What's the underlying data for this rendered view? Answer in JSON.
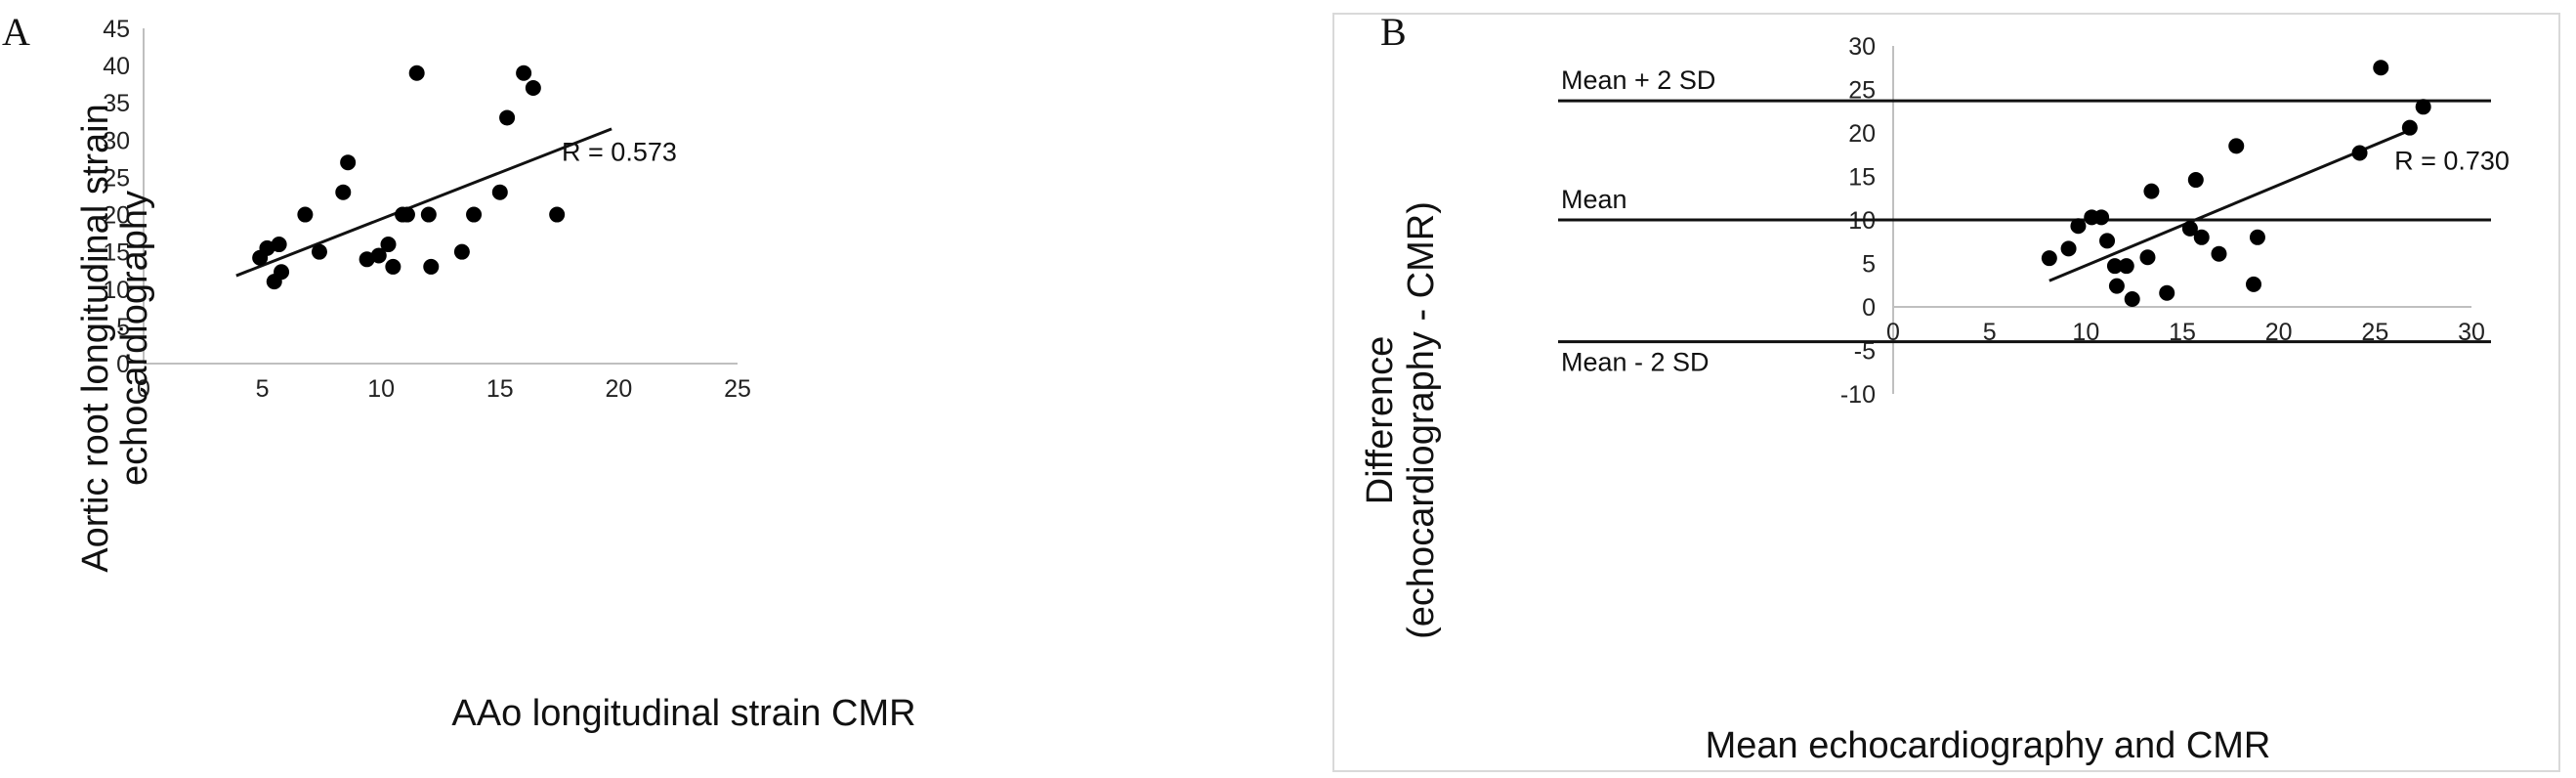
{
  "chart_data": [
    {
      "panel": "A",
      "type": "scatter",
      "xlabel": "AAo longitudinal strain CMR",
      "ylabel_lines": [
        "Aortic root longitudinal strain",
        "echocardiography"
      ],
      "xlim": [
        0,
        25
      ],
      "ylim": [
        0,
        45
      ],
      "xticks": [
        0,
        5,
        10,
        15,
        20,
        25
      ],
      "yticks": [
        0,
        5,
        10,
        15,
        20,
        25,
        30,
        35,
        40,
        45
      ],
      "points": [
        [
          4.9,
          14.2
        ],
        [
          5.2,
          15.5
        ],
        [
          5.5,
          11.0
        ],
        [
          5.7,
          16.0
        ],
        [
          5.8,
          12.3
        ],
        [
          6.8,
          20.0
        ],
        [
          7.4,
          15.0
        ],
        [
          8.4,
          23.0
        ],
        [
          8.6,
          27.0
        ],
        [
          9.4,
          14.0
        ],
        [
          9.9,
          14.5
        ],
        [
          10.3,
          16.0
        ],
        [
          10.5,
          13.0
        ],
        [
          10.9,
          20.0
        ],
        [
          11.1,
          20.0
        ],
        [
          11.5,
          39.0
        ],
        [
          12.0,
          20.0
        ],
        [
          12.1,
          13.0
        ],
        [
          13.4,
          15.0
        ],
        [
          13.9,
          20.0
        ],
        [
          15.0,
          23.0
        ],
        [
          15.3,
          33.0
        ],
        [
          16.0,
          39.0
        ],
        [
          16.4,
          37.0
        ],
        [
          17.4,
          20.0
        ]
      ],
      "trendline": [
        [
          3.9,
          11.8
        ],
        [
          19.7,
          31.5
        ]
      ],
      "annotations": [
        {
          "text": "R = 0.573",
          "x": 17.6,
          "y": 27.2
        }
      ]
    },
    {
      "panel": "B",
      "type": "scatter",
      "xlabel": "Mean echocardiography and CMR",
      "ylabel_lines": [
        "Difference",
        "(echocardiography - CMR)"
      ],
      "xlim": [
        0,
        30
      ],
      "ylim": [
        -10,
        30
      ],
      "xticks": [
        0,
        5,
        10,
        15,
        20,
        25,
        30
      ],
      "yticks": [
        -10,
        -5,
        0,
        5,
        10,
        15,
        20,
        25,
        30
      ],
      "points": [
        [
          8.1,
          5.6
        ],
        [
          9.1,
          6.7
        ],
        [
          9.6,
          9.3
        ],
        [
          10.3,
          10.3
        ],
        [
          10.8,
          10.3
        ],
        [
          11.1,
          7.6
        ],
        [
          11.5,
          4.7
        ],
        [
          11.6,
          2.4
        ],
        [
          12.1,
          4.7
        ],
        [
          12.4,
          0.9
        ],
        [
          13.2,
          5.7
        ],
        [
          13.4,
          13.3
        ],
        [
          14.2,
          1.6
        ],
        [
          15.4,
          9.0
        ],
        [
          15.7,
          14.6
        ],
        [
          16.0,
          8.0
        ],
        [
          16.9,
          6.1
        ],
        [
          17.8,
          18.5
        ],
        [
          18.7,
          2.6
        ],
        [
          18.9,
          8.0
        ],
        [
          24.2,
          17.7
        ],
        [
          25.3,
          27.5
        ],
        [
          26.8,
          20.6
        ],
        [
          27.5,
          23.0
        ]
      ],
      "trendline": [
        [
          8.1,
          3.0
        ],
        [
          26.9,
          20.4
        ]
      ],
      "reference_lines": [
        {
          "label": "Mean + 2 SD",
          "y": 23.7
        },
        {
          "label": "Mean",
          "y": 10.0
        },
        {
          "label": "Mean - 2 SD",
          "y": -4.0
        }
      ],
      "annotations": [
        {
          "text": "R = 0.730",
          "x": 26.0,
          "y": 15.8
        }
      ]
    }
  ]
}
